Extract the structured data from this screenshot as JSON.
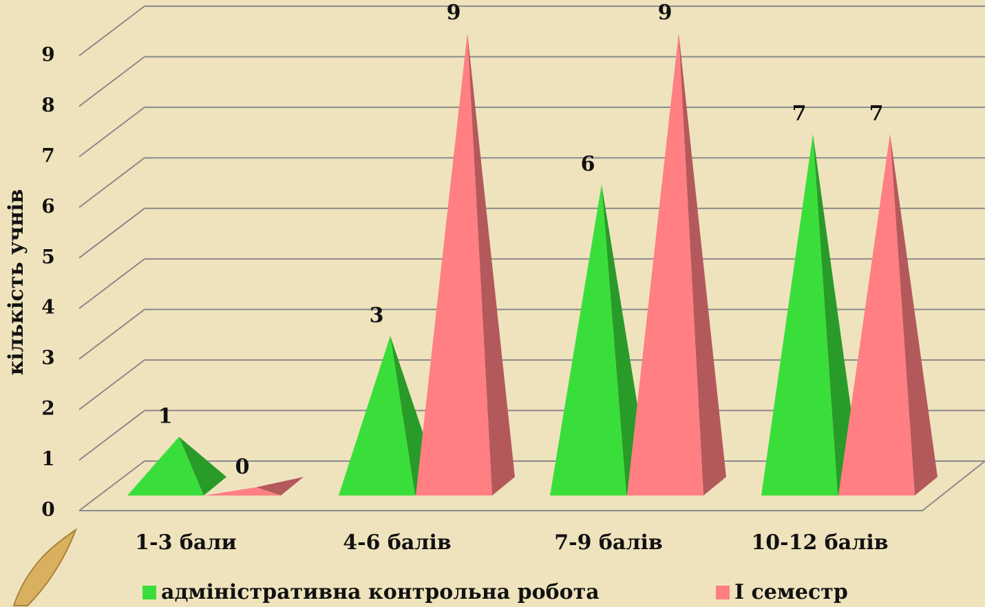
{
  "chart_data": {
    "type": "pyramid",
    "y_label": "кількість учнів",
    "categories": [
      "1-3 бали",
      "4-6 балів",
      "7-9 балів",
      "10-12 балів"
    ],
    "series": [
      {
        "name": "адміністративна контрольна робота",
        "color": "#3ade3a",
        "values": [
          1,
          3,
          6,
          7
        ]
      },
      {
        "name": "І семестр",
        "color": "#ff7f83",
        "values": [
          0,
          9,
          9,
          7
        ]
      }
    ],
    "ylim": [
      0,
      9
    ],
    "yticks": [
      0,
      1,
      2,
      3,
      4,
      5,
      6,
      7,
      8,
      9
    ],
    "grid": true
  }
}
